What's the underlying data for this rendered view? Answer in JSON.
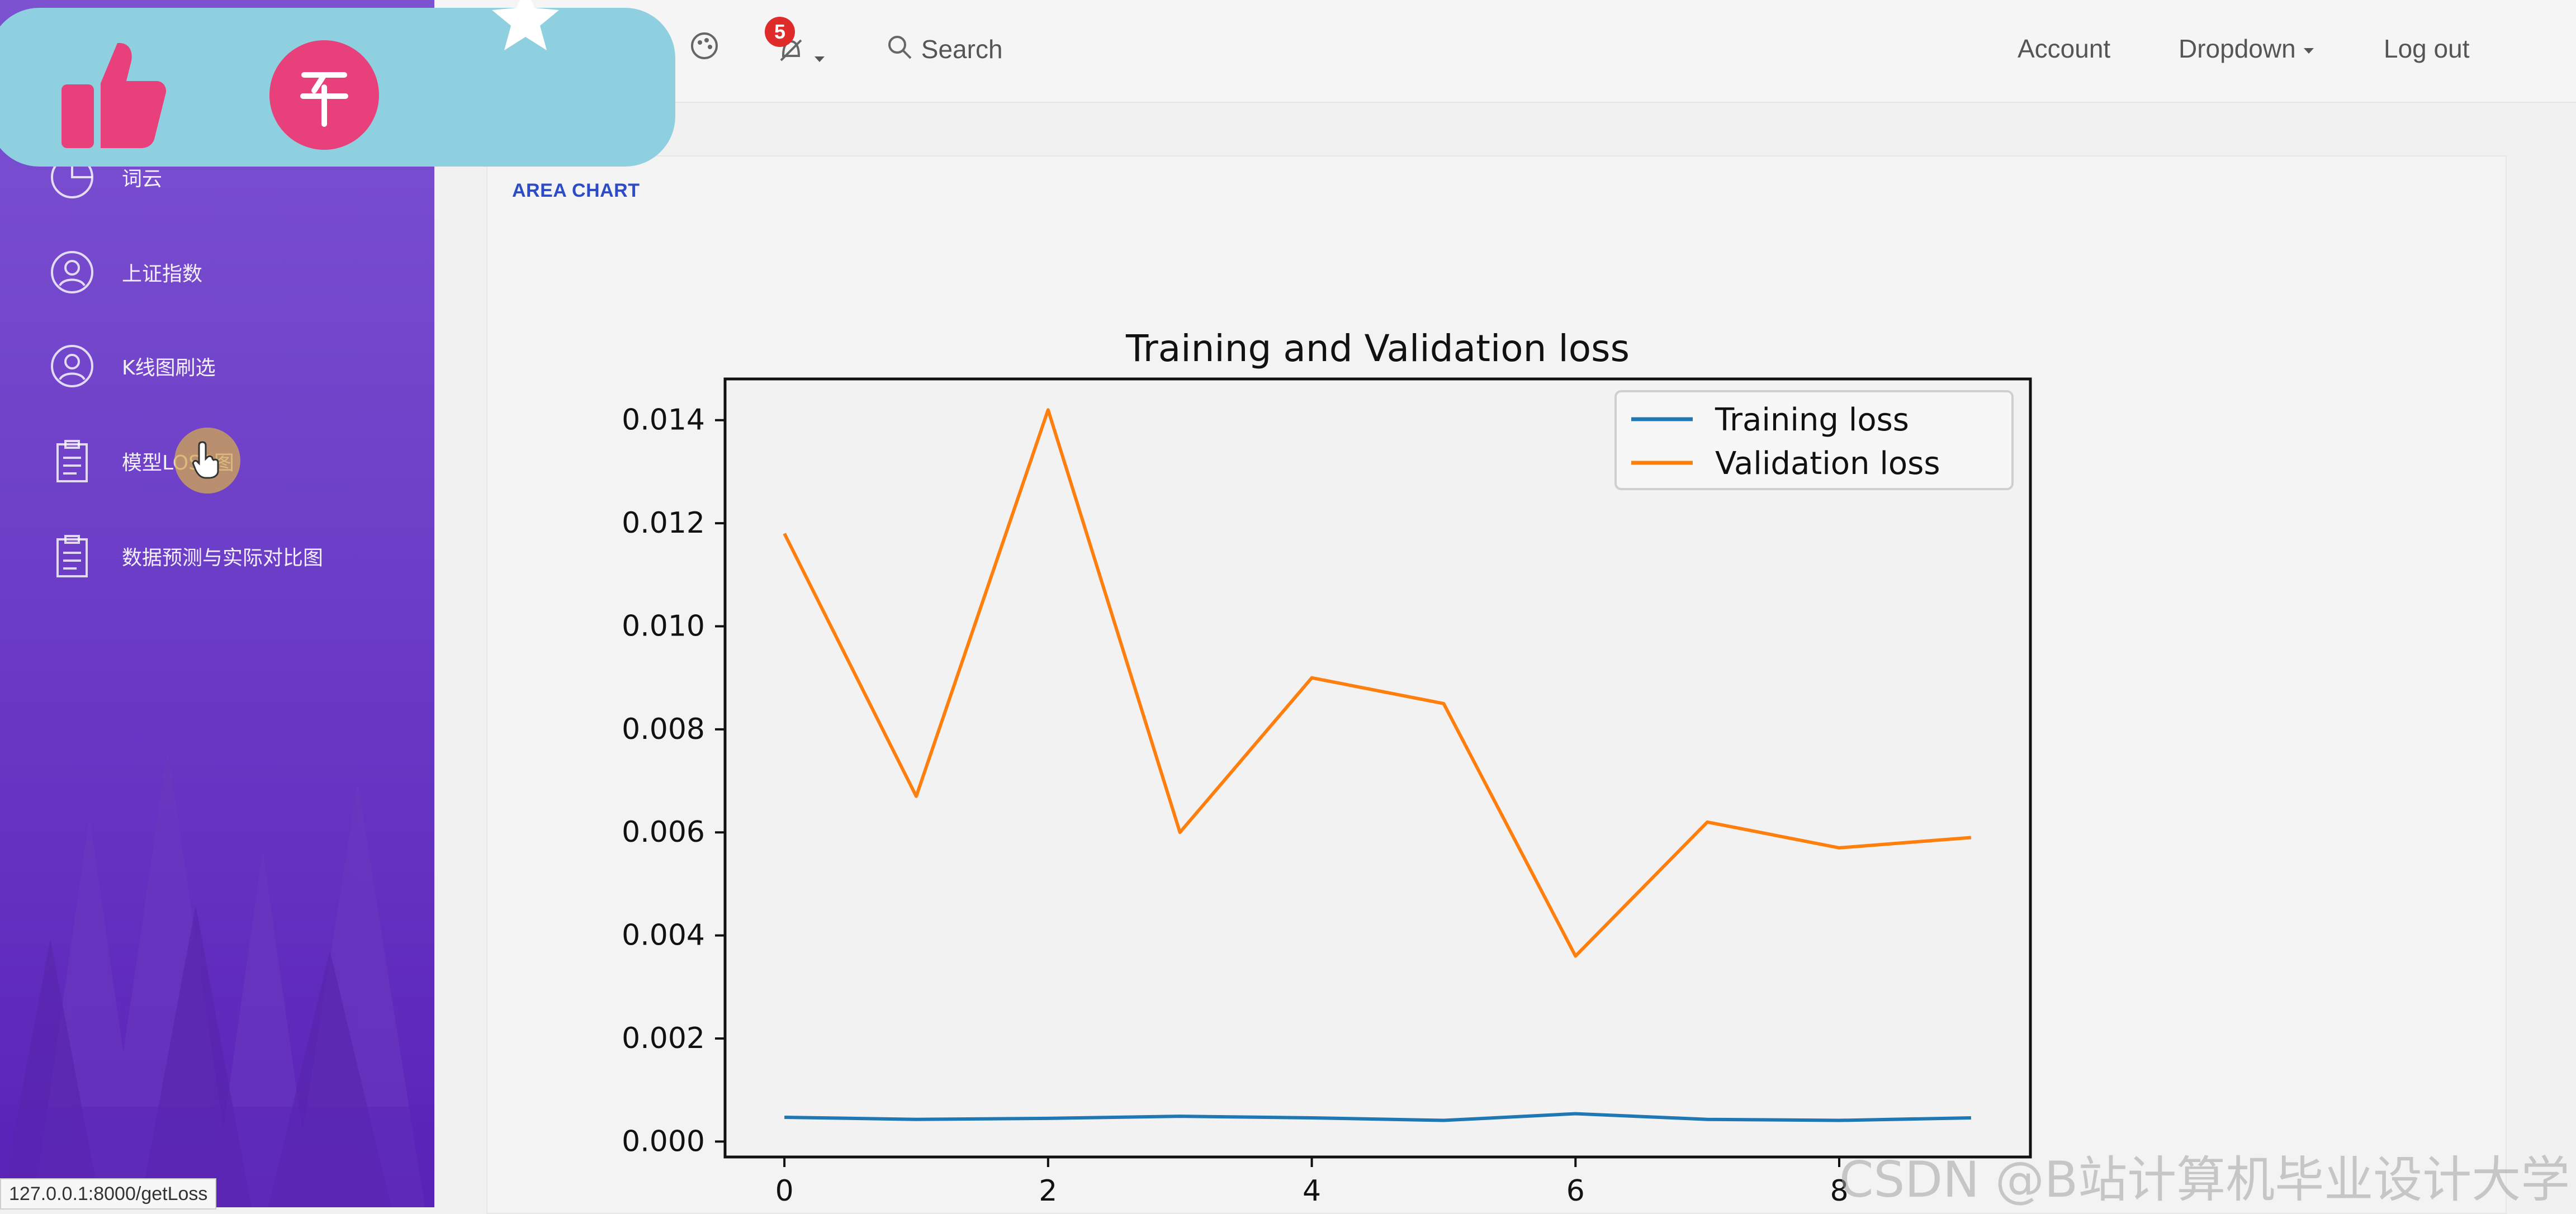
{
  "sidebar": {
    "items": [
      {
        "label": "词云",
        "icon": "pie-icon"
      },
      {
        "label": "上证指数",
        "icon": "user-circle-icon"
      },
      {
        "label": "K线图刷选",
        "icon": "user-circle-icon"
      },
      {
        "label": "模型LOSS图",
        "icon": "clipboard-icon"
      },
      {
        "label": "数据预测与实际对比图",
        "icon": "clipboard-icon"
      }
    ]
  },
  "topbar": {
    "notification_count": "5",
    "search_label": "Search",
    "account_label": "Account",
    "dropdown_label": "Dropdown",
    "logout_label": "Log out"
  },
  "card": {
    "title": "AREA CHART"
  },
  "chart_data": {
    "type": "line",
    "title": "Training and Validation loss",
    "xlabel": "",
    "ylabel": "",
    "x": [
      0,
      1,
      2,
      3,
      4,
      5,
      6,
      7,
      8,
      9
    ],
    "xticks": [
      "0",
      "2",
      "4",
      "6",
      "8"
    ],
    "yticks": [
      "0.000",
      "0.002",
      "0.004",
      "0.006",
      "0.008",
      "0.010",
      "0.012",
      "0.014"
    ],
    "ylim": [
      -0.0003,
      0.0148
    ],
    "xlim": [
      -0.45,
      9.45
    ],
    "series": [
      {
        "name": "Training loss",
        "color": "#1f77b4",
        "values": [
          0.00047,
          0.00043,
          0.00045,
          0.00049,
          0.00046,
          0.00041,
          0.00054,
          0.00043,
          0.00041,
          0.00046
        ]
      },
      {
        "name": "Validation loss",
        "color": "#ff7f0e",
        "values": [
          0.0118,
          0.0067,
          0.0142,
          0.006,
          0.009,
          0.0085,
          0.0036,
          0.0062,
          0.0057,
          0.0059
        ]
      }
    ],
    "legend": "top-right",
    "grid": false
  },
  "status_url": "127.0.0.1:8000/getLoss",
  "watermark": "CSDN @B站计算机毕业设计大学"
}
